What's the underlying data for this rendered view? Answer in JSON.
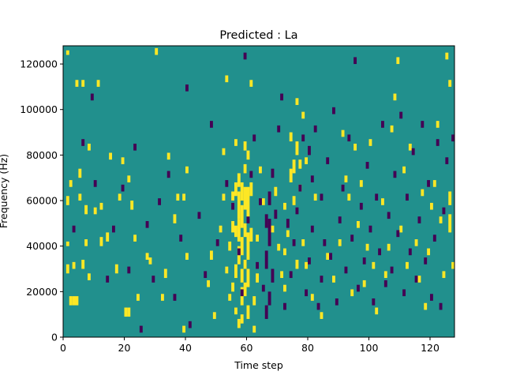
{
  "chart_data": {
    "type": "heatmap",
    "title": "Predicted : La",
    "xlabel": "Time step",
    "ylabel": "Frequency (Hz)",
    "xlim": [
      0,
      128
    ],
    "ylim": [
      0,
      128000
    ],
    "x_ticks": [
      "0",
      "20",
      "40",
      "60",
      "80",
      "100",
      "120"
    ],
    "y_ticks": [
      "0",
      "20000",
      "40000",
      "60000",
      "80000",
      "100000",
      "120000"
    ],
    "grid": false,
    "legend": "none",
    "colormap": "viridis",
    "colors": {
      "background": "#21908d",
      "high": "#fde725",
      "low": "#440154"
    },
    "n_time_steps": 128,
    "n_freq_bins": 128,
    "cell_hz": 1000,
    "sparse_cells": {
      "high": [
        [
          1,
          124,
          2
        ],
        [
          1,
          58,
          4
        ],
        [
          1,
          40,
          2
        ],
        [
          1,
          28,
          4
        ],
        [
          2,
          66,
          3
        ],
        [
          2,
          14,
          4
        ],
        [
          3,
          30,
          3
        ],
        [
          3,
          14,
          4
        ],
        [
          4,
          14,
          4
        ],
        [
          4,
          110,
          3
        ],
        [
          5,
          70,
          4
        ],
        [
          5,
          60,
          3
        ],
        [
          6,
          110,
          3
        ],
        [
          6,
          30,
          4
        ],
        [
          7,
          40,
          3
        ],
        [
          7,
          54,
          4
        ],
        [
          8,
          82,
          3
        ],
        [
          8,
          25,
          3
        ],
        [
          10,
          54,
          3
        ],
        [
          11,
          110,
          3
        ],
        [
          12,
          40,
          4
        ],
        [
          12,
          56,
          3
        ],
        [
          14,
          42,
          4
        ],
        [
          15,
          78,
          3
        ],
        [
          17,
          28,
          4
        ],
        [
          18,
          60,
          3
        ],
        [
          19,
          76,
          3
        ],
        [
          20,
          9,
          4
        ],
        [
          21,
          9,
          4
        ],
        [
          21,
          68,
          3
        ],
        [
          22,
          56,
          4
        ],
        [
          23,
          42,
          3
        ],
        [
          24,
          16,
          3
        ],
        [
          27,
          34,
          3
        ],
        [
          28,
          32,
          3
        ],
        [
          30,
          124,
          3
        ],
        [
          32,
          16,
          3
        ],
        [
          33,
          26,
          4
        ],
        [
          34,
          78,
          3
        ],
        [
          36,
          50,
          4
        ],
        [
          37,
          60,
          3
        ],
        [
          39,
          60,
          3
        ],
        [
          40,
          72,
          3
        ],
        [
          39,
          2,
          3
        ],
        [
          40,
          34,
          3
        ],
        [
          47,
          22,
          3
        ],
        [
          48,
          34,
          4
        ],
        [
          49,
          8,
          3
        ],
        [
          51,
          46,
          3
        ],
        [
          52,
          60,
          3
        ],
        [
          52,
          80,
          3
        ],
        [
          53,
          28,
          3
        ],
        [
          53,
          112,
          3
        ],
        [
          54,
          16,
          3
        ],
        [
          54,
          38,
          4
        ],
        [
          55,
          20,
          4
        ],
        [
          55,
          46,
          5
        ],
        [
          55,
          60,
          4
        ],
        [
          56,
          10,
          3
        ],
        [
          56,
          26,
          6
        ],
        [
          56,
          44,
          5
        ],
        [
          56,
          62,
          6
        ],
        [
          56,
          84,
          3
        ],
        [
          57,
          4,
          4
        ],
        [
          57,
          32,
          8
        ],
        [
          57,
          42,
          10
        ],
        [
          57,
          52,
          12
        ],
        [
          57,
          66,
          6
        ],
        [
          58,
          6,
          4
        ],
        [
          58,
          14,
          8
        ],
        [
          58,
          24,
          6
        ],
        [
          58,
          36,
          8
        ],
        [
          58,
          48,
          10
        ],
        [
          58,
          60,
          8
        ],
        [
          59,
          18,
          6
        ],
        [
          59,
          30,
          4
        ],
        [
          59,
          44,
          6
        ],
        [
          59,
          56,
          10
        ],
        [
          59,
          72,
          4
        ],
        [
          59,
          82,
          4
        ],
        [
          60,
          8,
          6
        ],
        [
          60,
          22,
          8
        ],
        [
          60,
          34,
          12
        ],
        [
          60,
          52,
          14
        ],
        [
          60,
          78,
          4
        ],
        [
          61,
          110,
          3
        ],
        [
          61,
          42,
          6
        ],
        [
          61,
          62,
          6
        ],
        [
          62,
          2,
          3
        ],
        [
          62,
          14,
          4
        ],
        [
          63,
          24,
          4
        ],
        [
          63,
          42,
          3
        ],
        [
          64,
          72,
          3
        ],
        [
          65,
          58,
          3
        ],
        [
          68,
          46,
          3
        ],
        [
          69,
          62,
          4
        ],
        [
          70,
          38,
          3
        ],
        [
          71,
          26,
          3
        ],
        [
          72,
          20,
          3
        ],
        [
          72,
          36,
          3
        ],
        [
          72,
          56,
          3
        ],
        [
          73,
          44,
          3
        ],
        [
          74,
          68,
          6
        ],
        [
          74,
          86,
          4
        ],
        [
          75,
          72,
          6
        ],
        [
          75,
          58,
          4
        ],
        [
          76,
          80,
          6
        ],
        [
          76,
          30,
          4
        ],
        [
          76,
          102,
          3
        ],
        [
          77,
          64,
          3
        ],
        [
          77,
          74,
          4
        ],
        [
          78,
          40,
          3
        ],
        [
          78,
          96,
          3
        ],
        [
          79,
          76,
          3
        ],
        [
          79,
          30,
          3
        ],
        [
          81,
          16,
          3
        ],
        [
          82,
          60,
          3
        ],
        [
          84,
          8,
          3
        ],
        [
          86,
          34,
          3
        ],
        [
          88,
          24,
          3
        ],
        [
          90,
          40,
          3
        ],
        [
          91,
          88,
          3
        ],
        [
          92,
          68,
          3
        ],
        [
          93,
          60,
          3
        ],
        [
          94,
          18,
          3
        ],
        [
          95,
          82,
          3
        ],
        [
          96,
          48,
          3
        ],
        [
          97,
          66,
          3
        ],
        [
          98,
          22,
          3
        ],
        [
          99,
          38,
          3
        ],
        [
          100,
          84,
          3
        ],
        [
          101,
          30,
          3
        ],
        [
          102,
          10,
          3
        ],
        [
          104,
          58,
          3
        ],
        [
          105,
          26,
          3
        ],
        [
          106,
          38,
          3
        ],
        [
          107,
          90,
          3
        ],
        [
          108,
          104,
          3
        ],
        [
          109,
          120,
          3
        ],
        [
          110,
          46,
          3
        ],
        [
          111,
          72,
          3
        ],
        [
          112,
          30,
          3
        ],
        [
          113,
          82,
          3
        ],
        [
          115,
          40,
          3
        ],
        [
          116,
          24,
          3
        ],
        [
          117,
          62,
          3
        ],
        [
          118,
          12,
          3
        ],
        [
          119,
          36,
          3
        ],
        [
          120,
          56,
          3
        ],
        [
          121,
          66,
          3
        ],
        [
          122,
          92,
          3
        ],
        [
          123,
          50,
          3
        ],
        [
          124,
          26,
          3
        ],
        [
          125,
          122,
          3
        ],
        [
          126,
          46,
          8
        ],
        [
          126,
          58,
          6
        ],
        [
          126,
          110,
          3
        ],
        [
          127,
          30,
          3
        ]
      ],
      "low": [
        [
          3,
          46,
          3
        ],
        [
          6,
          84,
          3
        ],
        [
          9,
          104,
          3
        ],
        [
          10,
          66,
          3
        ],
        [
          14,
          24,
          3
        ],
        [
          16,
          46,
          3
        ],
        [
          19,
          64,
          3
        ],
        [
          21,
          28,
          3
        ],
        [
          23,
          82,
          3
        ],
        [
          25,
          2,
          3
        ],
        [
          27,
          48,
          3
        ],
        [
          29,
          24,
          3
        ],
        [
          31,
          58,
          3
        ],
        [
          34,
          70,
          3
        ],
        [
          36,
          16,
          3
        ],
        [
          38,
          42,
          3
        ],
        [
          40,
          108,
          3
        ],
        [
          41,
          4,
          3
        ],
        [
          44,
          52,
          3
        ],
        [
          46,
          26,
          3
        ],
        [
          48,
          92,
          3
        ],
        [
          50,
          40,
          3
        ],
        [
          53,
          66,
          3
        ],
        [
          55,
          56,
          3
        ],
        [
          57,
          36,
          3
        ],
        [
          58,
          18,
          3
        ],
        [
          59,
          122,
          3
        ],
        [
          60,
          50,
          3
        ],
        [
          61,
          70,
          3
        ],
        [
          62,
          86,
          3
        ],
        [
          63,
          30,
          3
        ],
        [
          64,
          58,
          3
        ],
        [
          65,
          20,
          3
        ],
        [
          66,
          8,
          6
        ],
        [
          66,
          30,
          8
        ],
        [
          66,
          48,
          6
        ],
        [
          67,
          14,
          6
        ],
        [
          67,
          40,
          12
        ],
        [
          67,
          58,
          6
        ],
        [
          68,
          24,
          6
        ],
        [
          68,
          70,
          4
        ],
        [
          69,
          52,
          4
        ],
        [
          70,
          90,
          3
        ],
        [
          71,
          104,
          3
        ],
        [
          72,
          12,
          3
        ],
        [
          73,
          48,
          4
        ],
        [
          74,
          26,
          3
        ],
        [
          75,
          40,
          3
        ],
        [
          76,
          54,
          3
        ],
        [
          77,
          64,
          3
        ],
        [
          78,
          86,
          3
        ],
        [
          79,
          18,
          3
        ],
        [
          80,
          32,
          3
        ],
        [
          80,
          80,
          4
        ],
        [
          81,
          46,
          3
        ],
        [
          81,
          68,
          3
        ],
        [
          82,
          90,
          3
        ],
        [
          83,
          12,
          3
        ],
        [
          84,
          24,
          3
        ],
        [
          84,
          60,
          3
        ],
        [
          85,
          40,
          3
        ],
        [
          86,
          76,
          3
        ],
        [
          87,
          34,
          3
        ],
        [
          88,
          98,
          3
        ],
        [
          89,
          14,
          3
        ],
        [
          90,
          50,
          3
        ],
        [
          91,
          64,
          3
        ],
        [
          92,
          28,
          3
        ],
        [
          93,
          86,
          3
        ],
        [
          94,
          42,
          3
        ],
        [
          95,
          120,
          3
        ],
        [
          96,
          20,
          3
        ],
        [
          97,
          56,
          3
        ],
        [
          98,
          32,
          3
        ],
        [
          99,
          74,
          3
        ],
        [
          100,
          46,
          3
        ],
        [
          101,
          14,
          3
        ],
        [
          102,
          60,
          3
        ],
        [
          103,
          36,
          3
        ],
        [
          104,
          92,
          3
        ],
        [
          105,
          22,
          3
        ],
        [
          106,
          52,
          3
        ],
        [
          107,
          28,
          3
        ],
        [
          108,
          70,
          3
        ],
        [
          109,
          44,
          3
        ],
        [
          110,
          96,
          3
        ],
        [
          111,
          18,
          3
        ],
        [
          112,
          60,
          3
        ],
        [
          113,
          36,
          3
        ],
        [
          114,
          80,
          3
        ],
        [
          115,
          24,
          3
        ],
        [
          116,
          50,
          3
        ],
        [
          117,
          92,
          3
        ],
        [
          118,
          32,
          3
        ],
        [
          119,
          66,
          3
        ],
        [
          120,
          16,
          3
        ],
        [
          121,
          42,
          3
        ],
        [
          122,
          84,
          3
        ],
        [
          123,
          12,
          3
        ],
        [
          124,
          54,
          3
        ],
        [
          125,
          76,
          3
        ],
        [
          127,
          86,
          3
        ]
      ]
    }
  }
}
